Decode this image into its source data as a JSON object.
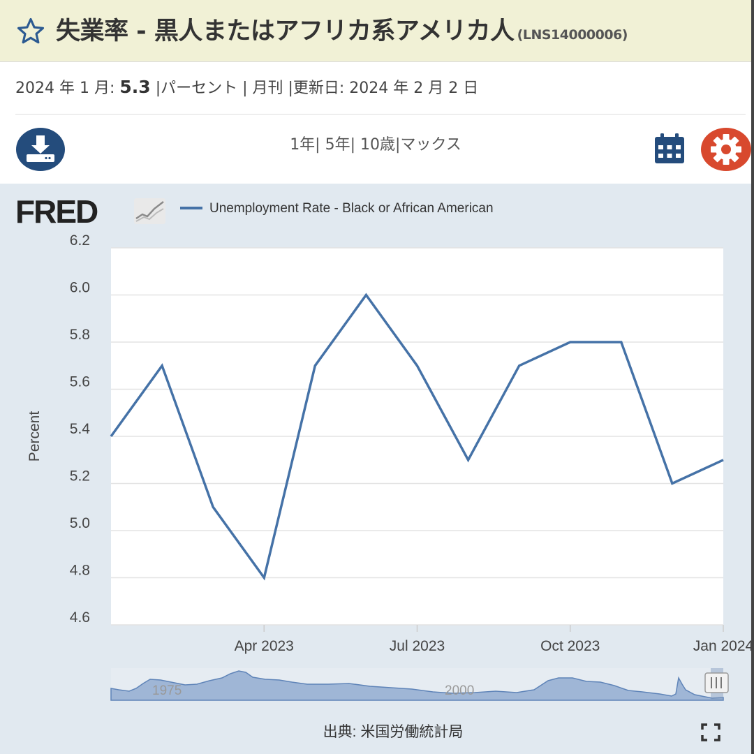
{
  "header": {
    "title": "失業率 - 黒人またはアフリカ系アメリカ人",
    "series_id": "(LNS14000006)",
    "star_icon": "star-outline-icon"
  },
  "meta": {
    "date_label": "2024 年 1 月:",
    "value": "5.3",
    "rest": "|パーセント | 月刊 |更新日: 2024 年 2 月 2 日"
  },
  "toolbar": {
    "download_icon": "download-icon",
    "ranges": [
      "1年|",
      "5年|",
      "10歳|",
      "マックス"
    ],
    "calendar_icon": "calendar-icon",
    "settings_icon": "gear-icon"
  },
  "logo": {
    "text": "FRED"
  },
  "chart_data": {
    "type": "line",
    "legend": "Unemployment Rate - Black or African American",
    "ylabel": "Percent",
    "ylim": [
      4.6,
      6.2
    ],
    "yticks": [
      "6.2",
      "6.0",
      "5.8",
      "5.6",
      "5.4",
      "5.2",
      "5.0",
      "4.8",
      "4.6"
    ],
    "xticks": [
      "Apr 2023",
      "Jul 2023",
      "Oct 2023",
      "Jan 2024"
    ],
    "series": [
      {
        "name": "Unemployment Rate - Black or African American",
        "color": "#4572a7",
        "x": [
          "2023-01",
          "2023-02",
          "2023-03",
          "2023-04",
          "2023-05",
          "2023-06",
          "2023-07",
          "2023-08",
          "2023-09",
          "2023-10",
          "2023-11",
          "2023-12",
          "2024-01"
        ],
        "values": [
          5.4,
          5.7,
          5.1,
          4.8,
          5.7,
          6.0,
          5.7,
          5.3,
          5.7,
          5.8,
          5.8,
          5.2,
          5.3
        ]
      }
    ],
    "navigator": {
      "labels": [
        "1975",
        "2000"
      ]
    },
    "source": "出典: 米国労働統計局"
  }
}
